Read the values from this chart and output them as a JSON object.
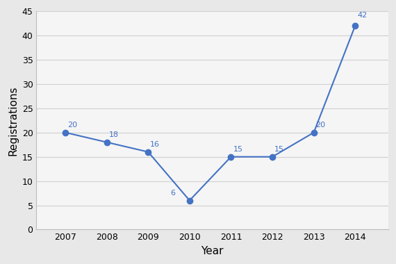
{
  "years": [
    2007,
    2008,
    2009,
    2010,
    2011,
    2012,
    2013,
    2014
  ],
  "values": [
    20,
    18,
    16,
    6,
    15,
    15,
    20,
    42
  ],
  "xlabel": "Year",
  "ylabel": "Registrations",
  "ylim": [
    0,
    45
  ],
  "yticks": [
    0,
    5,
    10,
    15,
    20,
    25,
    30,
    35,
    40,
    45
  ],
  "line_color": "#4472C4",
  "marker": "o",
  "marker_size": 6,
  "line_width": 1.5,
  "bg_color": "#e8e8e8",
  "plot_bg_color": "#f5f5f5",
  "grid_color": "#d0d0d0",
  "font_size_xlabel": 11,
  "font_size_ylabel": 11,
  "font_size_ticks": 9,
  "font_size_annotations": 8,
  "annotation_color": "#4472C4"
}
